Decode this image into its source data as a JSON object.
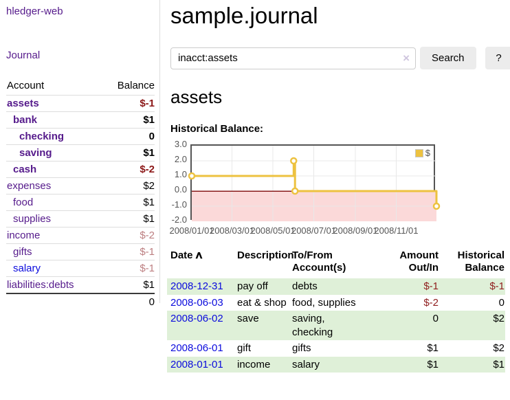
{
  "app": {
    "brand": "hledger-web",
    "nav": {
      "journal": "Journal"
    }
  },
  "colors": {
    "link_purple": "#551a8b",
    "link_blue": "#0b0bdd",
    "negative_strong": "#8c1717",
    "negative_soft": "#bc7e80",
    "negative_register": "#8f1d1d",
    "row_green": "#dff0d8"
  },
  "sidebar": {
    "header": {
      "account": "Account",
      "balance": "Balance"
    },
    "accounts": [
      {
        "name": "assets",
        "depth": 1,
        "bold": true,
        "balance": "$-1",
        "balance_style": "neg-strong",
        "link_style": "purple"
      },
      {
        "name": "bank",
        "depth": 2,
        "bold": true,
        "balance": "$1",
        "balance_style": "plain",
        "link_style": "purple"
      },
      {
        "name": "checking",
        "depth": 3,
        "bold": true,
        "balance": "0",
        "balance_style": "plain",
        "link_style": "purple"
      },
      {
        "name": "saving",
        "depth": 3,
        "bold": true,
        "balance": "$1",
        "balance_style": "plain",
        "link_style": "purple"
      },
      {
        "name": "cash",
        "depth": 2,
        "bold": true,
        "balance": "$-2",
        "balance_style": "neg-strong",
        "link_style": "purple"
      },
      {
        "name": "expenses",
        "depth": 1,
        "bold": false,
        "balance": "$2",
        "balance_style": "plain",
        "link_style": "purple"
      },
      {
        "name": "food",
        "depth": 2,
        "bold": false,
        "balance": "$1",
        "balance_style": "plain",
        "link_style": "purple"
      },
      {
        "name": "supplies",
        "depth": 2,
        "bold": false,
        "balance": "$1",
        "balance_style": "plain",
        "link_style": "purple"
      },
      {
        "name": "income",
        "depth": 1,
        "bold": false,
        "balance": "$-2",
        "balance_style": "neg-soft",
        "link_style": "purple"
      },
      {
        "name": "gifts",
        "depth": 2,
        "bold": false,
        "balance": "$-1",
        "balance_style": "neg-soft",
        "link_style": "purple"
      },
      {
        "name": "salary",
        "depth": 2,
        "bold": false,
        "balance": "$-1",
        "balance_style": "neg-soft",
        "link_style": "blue"
      },
      {
        "name": "liabilities:debts",
        "depth": 1,
        "bold": false,
        "balance": "$1",
        "balance_style": "plain",
        "link_style": "purple"
      }
    ],
    "total": "0"
  },
  "main": {
    "title": "sample.journal",
    "search": {
      "value": "inacct:assets",
      "clear_icon": "×",
      "search_label": "Search",
      "help_label": "?"
    },
    "account_heading": "assets",
    "chart_label": "Historical Balance:"
  },
  "chart_data": {
    "type": "line",
    "title": "Historical Balance:",
    "style": "step-with-markers",
    "series": [
      {
        "name": "$",
        "points": [
          {
            "date": "2008-01-01",
            "value": 1
          },
          {
            "date": "2008-06-01",
            "value": 2
          },
          {
            "date": "2008-06-03",
            "value": 0
          },
          {
            "date": "2008-12-31",
            "value": -1
          }
        ]
      }
    ],
    "x_ticks": [
      "2008/01/01",
      "2008/03/01",
      "2008/05/01",
      "2008/07/01",
      "2008/09/01",
      "2008/11/01"
    ],
    "y_ticks": [
      3.0,
      2.0,
      1.0,
      0.0,
      -1.0,
      -2.0
    ],
    "xrange": [
      "2008-01-01",
      "2008-12-31"
    ],
    "ylim": [
      -2,
      3
    ],
    "grid": true,
    "legend_position": "top-right",
    "colors": {
      "series": "#edc240",
      "marker_fill": "#ffffff",
      "negative_region": "#fbd9d9",
      "zero_line": "#871a1a",
      "grid": "#e8e8e8",
      "border": "#545454",
      "tick_text": "#545454"
    }
  },
  "register": {
    "sort_icon": "∧",
    "headers": {
      "date": "Date",
      "description": "Description",
      "accounts": "To/From Account(s)",
      "amount": "Amount Out/In",
      "balance": "Historical Balance"
    },
    "rows": [
      {
        "date": "2008-12-31",
        "description": "pay off",
        "accounts": "debts",
        "amount": "$-1",
        "amount_negative": true,
        "balance": "$-1",
        "balance_negative": true,
        "shaded": true
      },
      {
        "date": "2008-06-03",
        "description": "eat & shop",
        "accounts": "food, supplies",
        "amount": "$-2",
        "amount_negative": true,
        "balance": "0",
        "balance_negative": false,
        "shaded": false
      },
      {
        "date": "2008-06-02",
        "description": "save",
        "accounts": "saving, checking",
        "amount": "0",
        "amount_negative": false,
        "balance": "$2",
        "balance_negative": false,
        "shaded": true
      },
      {
        "date": "2008-06-01",
        "description": "gift",
        "accounts": "gifts",
        "amount": "$1",
        "amount_negative": false,
        "balance": "$2",
        "balance_negative": false,
        "shaded": false
      },
      {
        "date": "2008-01-01",
        "description": "income",
        "accounts": "salary",
        "amount": "$1",
        "amount_negative": false,
        "balance": "$1",
        "balance_negative": false,
        "shaded": true
      }
    ]
  }
}
